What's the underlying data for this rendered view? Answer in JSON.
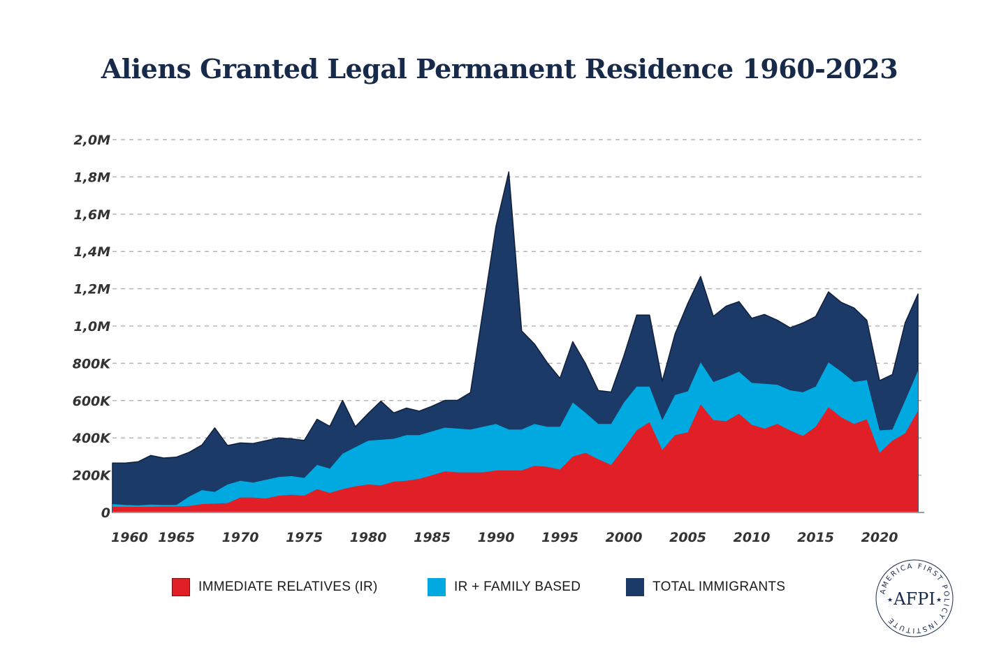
{
  "chart_data": {
    "type": "area",
    "title": "Aliens Granted Legal Permanent Residence 1960-2023",
    "xlabel": "",
    "ylabel": "",
    "x_ticks": [
      "1960",
      "1965",
      "1970",
      "1975",
      "1980",
      "1985",
      "1990",
      "1995",
      "2000",
      "2005",
      "2010",
      "2015",
      "2020"
    ],
    "y_ticks": [
      "0",
      "200K",
      "400K",
      "600K",
      "800K",
      "1,0M",
      "1,2M",
      "1,4M",
      "1,6M",
      "1,8M",
      "2,0M"
    ],
    "ylim": [
      0,
      2000000
    ],
    "grid": true,
    "legend_position": "bottom",
    "x": [
      1960,
      1961,
      1962,
      1963,
      1964,
      1965,
      1966,
      1967,
      1968,
      1969,
      1970,
      1971,
      1972,
      1973,
      1974,
      1975,
      1976,
      1977,
      1978,
      1979,
      1980,
      1981,
      1982,
      1983,
      1984,
      1985,
      1986,
      1987,
      1988,
      1989,
      1990,
      1991,
      1992,
      1993,
      1994,
      1995,
      1996,
      1997,
      1998,
      1999,
      2000,
      2001,
      2002,
      2003,
      2004,
      2005,
      2006,
      2007,
      2008,
      2009,
      2010,
      2011,
      2012,
      2013,
      2014,
      2015,
      2016,
      2017,
      2018,
      2019,
      2020,
      2021,
      2022,
      2023
    ],
    "series": [
      {
        "name": "TOTAL IMMIGRANTS",
        "color": "#1c3a68",
        "values": [
          265000,
          265000,
          272000,
          306000,
          292000,
          297000,
          323000,
          362000,
          454000,
          359000,
          373000,
          370000,
          385000,
          400000,
          395000,
          386000,
          500000,
          462000,
          601000,
          460000,
          531000,
          597000,
          534000,
          560000,
          544000,
          570000,
          601000,
          602000,
          643000,
          1090000,
          1536000,
          1827000,
          974000,
          904000,
          804000,
          720000,
          916000,
          798000,
          654000,
          646000,
          841000,
          1059000,
          1059000,
          704000,
          958000,
          1122000,
          1266000,
          1052000,
          1107000,
          1131000,
          1042000,
          1062000,
          1031000,
          991000,
          1017000,
          1051000,
          1183000,
          1127000,
          1097000,
          1031000,
          707000,
          740000,
          1018000,
          1172000
        ]
      },
      {
        "name": "IR + FAMILY BASED",
        "color": "#00a9e0",
        "values": [
          45000,
          40000,
          38000,
          42000,
          40000,
          40000,
          85000,
          120000,
          110000,
          150000,
          170000,
          160000,
          175000,
          190000,
          195000,
          185000,
          255000,
          235000,
          315000,
          350000,
          385000,
          390000,
          395000,
          415000,
          415000,
          435000,
          455000,
          450000,
          445000,
          460000,
          475000,
          445000,
          445000,
          475000,
          460000,
          460000,
          590000,
          535000,
          475000,
          475000,
          590000,
          675000,
          675000,
          495000,
          630000,
          650000,
          805000,
          700000,
          725000,
          755000,
          695000,
          690000,
          685000,
          655000,
          645000,
          675000,
          805000,
          755000,
          700000,
          710000,
          440000,
          445000,
          600000,
          760000
        ]
      },
      {
        "name": "IMMEDIATE RELATIVES (IR)",
        "color": "#e01f26",
        "values": [
          30000,
          30000,
          30000,
          30000,
          32000,
          32000,
          35000,
          45000,
          48000,
          50000,
          80000,
          80000,
          75000,
          90000,
          95000,
          90000,
          125000,
          105000,
          125000,
          140000,
          150000,
          145000,
          165000,
          170000,
          180000,
          200000,
          220000,
          215000,
          215000,
          215000,
          225000,
          225000,
          225000,
          250000,
          245000,
          230000,
          300000,
          320000,
          285000,
          255000,
          345000,
          440000,
          485000,
          335000,
          415000,
          430000,
          580000,
          495000,
          490000,
          530000,
          470000,
          450000,
          475000,
          440000,
          410000,
          460000,
          565000,
          510000,
          475000,
          500000,
          320000,
          385000,
          425000,
          545000
        ]
      }
    ]
  },
  "legend": [
    {
      "label": "IMMEDIATE RELATIVES (IR)",
      "color": "#e01f26"
    },
    {
      "label": "IR + FAMILY BASED",
      "color": "#00a9e0"
    },
    {
      "label": "TOTAL IMMIGRANTS",
      "color": "#1c3a68"
    }
  ],
  "logo": {
    "ring_text": "AMERICA FIRST POLICY INSTITUTE",
    "initials": "AFPI",
    "color": "#172a4a"
  }
}
